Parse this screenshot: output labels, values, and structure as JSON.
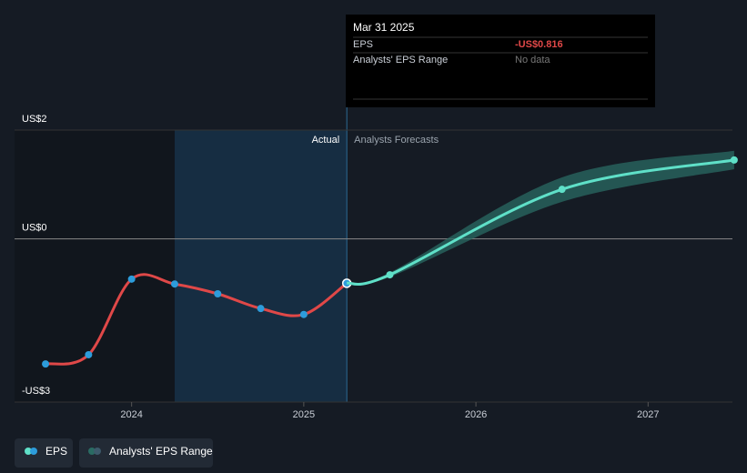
{
  "chart_data": {
    "type": "line",
    "xlim": [
      2023.32,
      2027.49
    ],
    "xticks": [
      2024,
      2025,
      2026,
      2027
    ],
    "ylim": [
      -3,
      2
    ],
    "yticks": [
      {
        "value": 2,
        "label": "US$2"
      },
      {
        "value": 0,
        "label": "US$0"
      },
      {
        "value": -3,
        "label": "-US$3"
      }
    ],
    "region_labels": [
      "Actual",
      "Analysts Forecasts"
    ],
    "series": [
      {
        "name": "EPS",
        "color": "#e04848",
        "x": [
          2023.5,
          2023.75,
          2024.0,
          2024.25,
          2024.5,
          2024.75,
          2025.0,
          2025.25
        ],
        "values": [
          -2.3,
          -2.13,
          -0.74,
          -0.83,
          -1.01,
          -1.28,
          -1.39,
          -0.816
        ]
      },
      {
        "name": "Analysts' EPS Range",
        "color": "#5fe0c8",
        "x": [
          2025.25,
          2025.5,
          2026.5,
          2027.5
        ],
        "values": [
          -0.816,
          -0.66,
          0.91,
          1.45
        ],
        "low": [
          -0.816,
          -0.7,
          0.68,
          1.28
        ],
        "high": [
          -0.816,
          -0.62,
          1.13,
          1.62
        ]
      }
    ],
    "tooltip": {
      "date": "Mar 31 2025",
      "rows": [
        [
          "EPS",
          "-US$0.816"
        ],
        [
          "Analysts' EPS Range",
          "No data"
        ]
      ]
    }
  }
}
